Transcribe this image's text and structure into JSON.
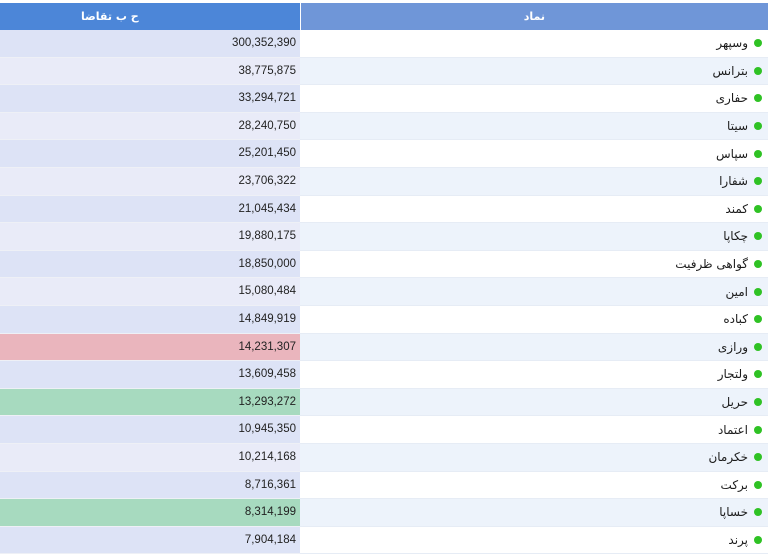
{
  "table": {
    "headers": {
      "value": "ح ب تقاضا",
      "symbol": "نماد"
    },
    "colors": {
      "header_left": "#4c86d8",
      "header_right": "#6f96d8",
      "status_dot": "#2fc224",
      "highlight_red": "#eab5bd",
      "highlight_green": "#a7dabf"
    },
    "rows": [
      {
        "symbol": "وسپهر",
        "value": "300,352,390",
        "highlight": ""
      },
      {
        "symbol": "بترانس",
        "value": "38,775,875",
        "highlight": ""
      },
      {
        "symbol": "حفاری",
        "value": "33,294,721",
        "highlight": ""
      },
      {
        "symbol": "سیتا",
        "value": "28,240,750",
        "highlight": ""
      },
      {
        "symbol": "سپاس",
        "value": "25,201,450",
        "highlight": ""
      },
      {
        "symbol": "شفارا",
        "value": "23,706,322",
        "highlight": ""
      },
      {
        "symbol": "کمند",
        "value": "21,045,434",
        "highlight": ""
      },
      {
        "symbol": "چکاپا",
        "value": "19,880,175",
        "highlight": ""
      },
      {
        "symbol": "گواهی ظرفیت",
        "value": "18,850,000",
        "highlight": ""
      },
      {
        "symbol": "امین",
        "value": "15,080,484",
        "highlight": ""
      },
      {
        "symbol": "کباده",
        "value": "14,849,919",
        "highlight": ""
      },
      {
        "symbol": "ورازی",
        "value": "14,231,307",
        "highlight": "red"
      },
      {
        "symbol": "ولتجار",
        "value": "13,609,458",
        "highlight": ""
      },
      {
        "symbol": "حریل",
        "value": "13,293,272",
        "highlight": "green"
      },
      {
        "symbol": "اعتماد",
        "value": "10,945,350",
        "highlight": ""
      },
      {
        "symbol": "خکرمان",
        "value": "10,214,168",
        "highlight": ""
      },
      {
        "symbol": "برکت",
        "value": "8,716,361",
        "highlight": ""
      },
      {
        "symbol": "خساپا",
        "value": "8,314,199",
        "highlight": "green"
      },
      {
        "symbol": "پرند",
        "value": "7,904,184",
        "highlight": ""
      }
    ]
  }
}
